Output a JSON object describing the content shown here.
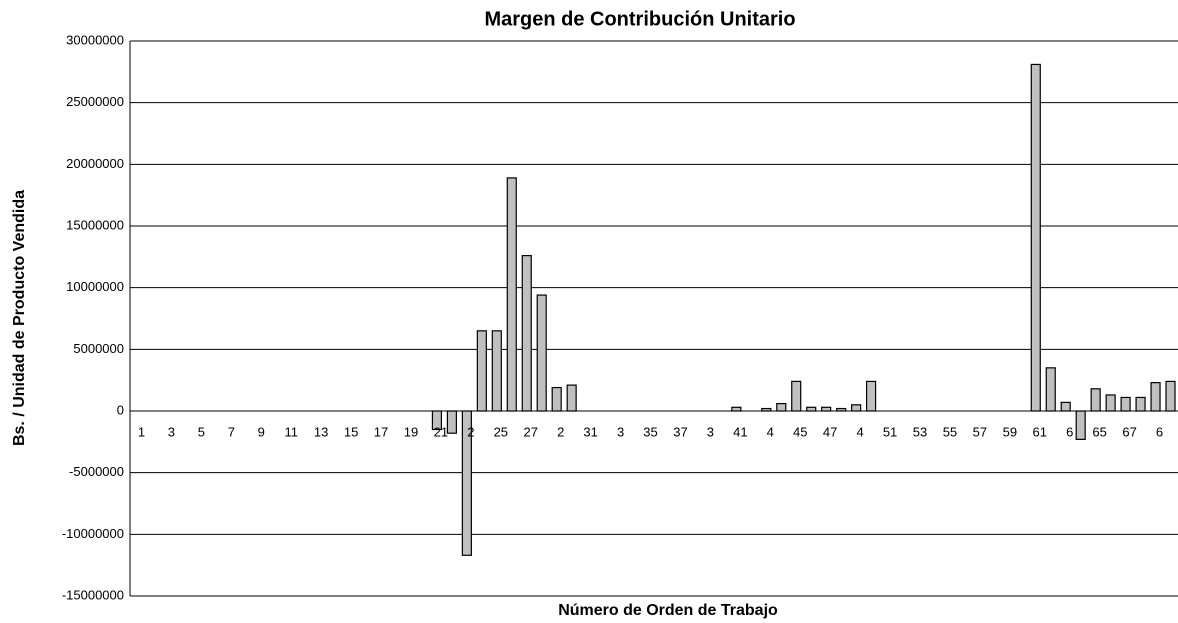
{
  "chart_data": {
    "type": "bar",
    "title": "Margen de Contribución Unitario",
    "x_label": "Número de Orden de Trabajo",
    "y_label": "Bs. / Unidad de Producto Vendida",
    "categories": [
      "1",
      null,
      "3",
      null,
      "5",
      null,
      "7",
      null,
      "9",
      null,
      "11",
      null,
      "13",
      null,
      "15",
      null,
      "17",
      null,
      "19",
      null,
      "21",
      null,
      "2",
      null,
      "25",
      null,
      "27",
      null,
      "2",
      null,
      "31",
      null,
      "3",
      null,
      "35",
      null,
      "37",
      null,
      "3",
      null,
      "41",
      null,
      "4",
      null,
      "45",
      null,
      "47",
      null,
      "4",
      null,
      "51",
      null,
      "53",
      null,
      "55",
      null,
      "57",
      null,
      "59",
      null,
      "61",
      null,
      "6",
      null,
      "65",
      null,
      "67",
      null,
      "6",
      null
    ],
    "values": [
      0,
      0,
      0,
      0,
      0,
      0,
      0,
      0,
      0,
      0,
      0,
      0,
      0,
      0,
      0,
      0,
      0,
      0,
      0,
      0,
      -1500000,
      -1800000,
      -11700000,
      6500000,
      6500000,
      18900000,
      12600000,
      9400000,
      1900000,
      2100000,
      0,
      0,
      0,
      0,
      0,
      0,
      0,
      0,
      0,
      0,
      300000,
      0,
      200000,
      600000,
      2400000,
      300000,
      300000,
      200000,
      500000,
      2400000,
      0,
      0,
      0,
      0,
      0,
      0,
      0,
      0,
      0,
      0,
      28100000,
      3500000,
      700000,
      -2300000,
      1800000,
      1300000,
      1100000,
      1100000,
      2300000,
      2400000
    ],
    "color": "#c0c0c0",
    "ylim": [
      -15000000,
      30000000
    ],
    "yticks": [
      -15000000,
      -10000000,
      -5000000,
      0,
      5000000,
      10000000,
      15000000,
      20000000,
      25000000,
      30000000
    ],
    "grid": true
  }
}
